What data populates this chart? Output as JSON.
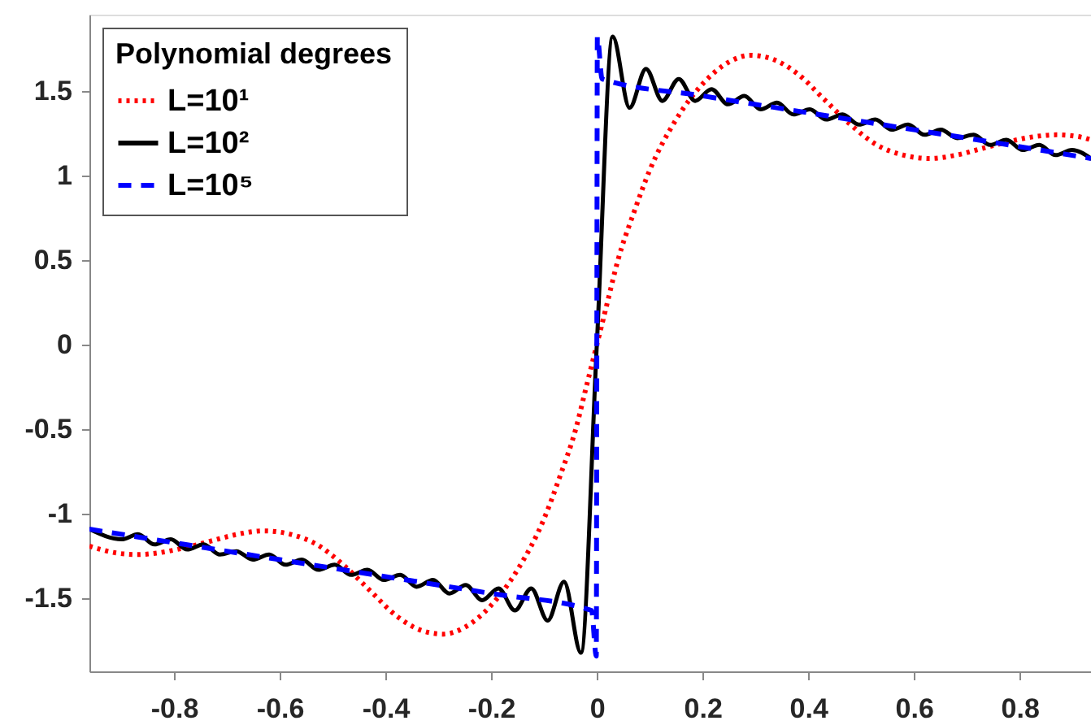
{
  "chart_data": {
    "type": "line",
    "legend_title": "Polynomial degrees",
    "legend": "top left",
    "grid": false,
    "xlim": [
      -0.96,
      0.935
    ],
    "ylim": [
      -1.93,
      1.95
    ],
    "xticks": [
      -0.8,
      -0.6,
      -0.4,
      -0.2,
      0,
      0.2,
      0.4,
      0.6,
      0.8
    ],
    "yticks": [
      -1.5,
      -1,
      -0.5,
      0,
      0.5,
      1,
      1.5
    ],
    "series": [
      {
        "name": "L=10¹",
        "color": "#ff0000",
        "line_style": "dotted",
        "x": [
          -0.96,
          -0.91,
          -0.87,
          -0.83,
          -0.78,
          -0.73,
          -0.68,
          -0.63,
          -0.58,
          -0.53,
          -0.48,
          -0.43,
          -0.38,
          -0.33,
          -0.29,
          -0.25,
          -0.2,
          -0.15,
          -0.1,
          -0.07,
          -0.04,
          -0.02,
          0,
          0.02,
          0.04,
          0.07,
          0.1,
          0.15,
          0.2,
          0.25,
          0.29,
          0.33,
          0.38,
          0.43,
          0.48,
          0.53,
          0.58,
          0.63,
          0.68,
          0.73,
          0.78,
          0.83,
          0.87,
          0.91,
          0.935
        ],
        "values": [
          -1.19,
          -1.23,
          -1.24,
          -1.23,
          -1.2,
          -1.16,
          -1.12,
          -1.1,
          -1.12,
          -1.18,
          -1.3,
          -1.45,
          -1.6,
          -1.69,
          -1.71,
          -1.67,
          -1.54,
          -1.33,
          -1.03,
          -0.78,
          -0.5,
          -0.25,
          0,
          0.25,
          0.5,
          0.78,
          1.03,
          1.33,
          1.54,
          1.67,
          1.71,
          1.69,
          1.6,
          1.45,
          1.3,
          1.18,
          1.12,
          1.1,
          1.12,
          1.16,
          1.2,
          1.23,
          1.24,
          1.23,
          1.21
        ]
      },
      {
        "name": "L=10²",
        "color": "#000000",
        "line_style": "solid",
        "x": [
          -0.96,
          -0.899,
          -0.868,
          -0.837,
          -0.806,
          -0.775,
          -0.744,
          -0.713,
          -0.682,
          -0.651,
          -0.62,
          -0.589,
          -0.558,
          -0.527,
          -0.496,
          -0.465,
          -0.434,
          -0.403,
          -0.372,
          -0.341,
          -0.31,
          -0.279,
          -0.248,
          -0.217,
          -0.186,
          -0.155,
          -0.124,
          -0.093,
          -0.062,
          -0.03,
          0,
          0.03,
          0.062,
          0.093,
          0.124,
          0.155,
          0.186,
          0.217,
          0.248,
          0.279,
          0.31,
          0.341,
          0.372,
          0.403,
          0.434,
          0.465,
          0.496,
          0.527,
          0.558,
          0.589,
          0.62,
          0.651,
          0.682,
          0.713,
          0.744,
          0.775,
          0.806,
          0.837,
          0.868,
          0.899,
          0.935
        ],
        "values": [
          -1.09,
          -1.15,
          -1.12,
          -1.18,
          -1.15,
          -1.21,
          -1.18,
          -1.24,
          -1.22,
          -1.27,
          -1.24,
          -1.3,
          -1.27,
          -1.33,
          -1.3,
          -1.36,
          -1.33,
          -1.39,
          -1.36,
          -1.43,
          -1.39,
          -1.47,
          -1.42,
          -1.51,
          -1.44,
          -1.57,
          -1.44,
          -1.63,
          -1.4,
          -1.82,
          0,
          1.82,
          1.4,
          1.63,
          1.44,
          1.57,
          1.44,
          1.51,
          1.42,
          1.47,
          1.39,
          1.43,
          1.36,
          1.39,
          1.33,
          1.36,
          1.3,
          1.33,
          1.27,
          1.3,
          1.24,
          1.27,
          1.22,
          1.24,
          1.18,
          1.21,
          1.15,
          1.18,
          1.12,
          1.15,
          1.1
        ]
      },
      {
        "name": "L=10⁵",
        "color": "#0000ff",
        "line_style": "dashed",
        "x": [
          -0.96,
          -0.8,
          -0.6,
          -0.4,
          -0.2,
          -0.01,
          -0.001,
          0,
          0.001,
          0.01,
          0.2,
          0.4,
          0.6,
          0.8,
          0.935
        ],
        "values": [
          -1.09,
          -1.17,
          -1.27,
          -1.37,
          -1.47,
          -1.57,
          -1.84,
          0,
          1.82,
          1.57,
          1.47,
          1.37,
          1.27,
          1.17,
          1.1
        ]
      }
    ]
  }
}
